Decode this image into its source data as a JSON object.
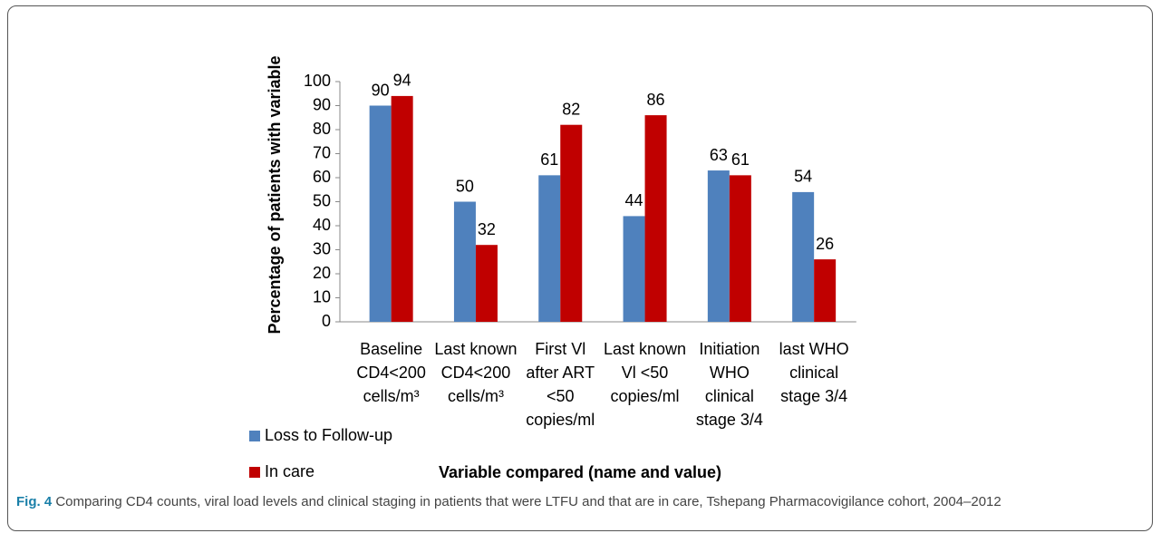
{
  "chart_data": {
    "type": "bar",
    "categories": [
      "Baseline CD4<200 cells/m³",
      "Last known CD4<200 cells/m³",
      "First Vl after ART <50 copies/ml",
      "Last known Vl <50 copies/ml",
      "Initiation WHO clinical stage 3/4",
      "last WHO clinical stage 3/4"
    ],
    "series": [
      {
        "name": "Loss to Follow-up",
        "color": "#4f81bd",
        "values": [
          90,
          50,
          61,
          44,
          63,
          54
        ]
      },
      {
        "name": "In care",
        "color": "#c00000",
        "values": [
          94,
          32,
          82,
          86,
          61,
          26
        ]
      }
    ],
    "ylim": [
      0,
      100
    ],
    "yticks": [
      0,
      10,
      20,
      30,
      40,
      50,
      60,
      70,
      80,
      90,
      100
    ],
    "y_label": "Percentage of patients with variable",
    "x_label": "Variable compared (name and value)",
    "figure_label": "Fig. 4",
    "caption": "Comparing CD4 counts, viral load levels and clinical staging in patients that were LTFU and that are in care, Tshepang Pharmacovigilance cohort, 2004–2012"
  }
}
